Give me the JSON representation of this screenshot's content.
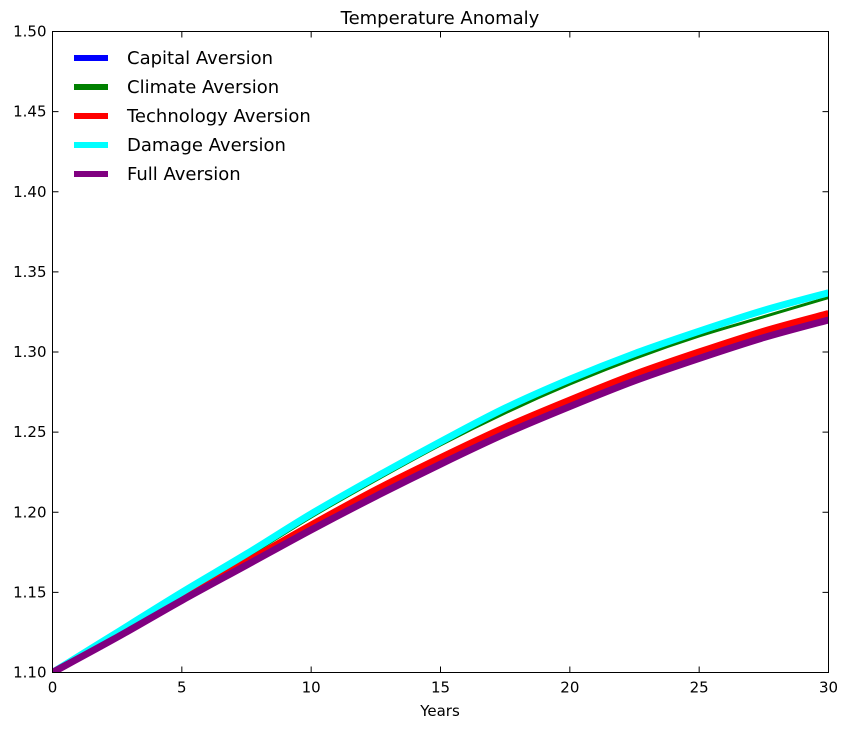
{
  "chart_data": {
    "type": "line",
    "title": "Temperature Anomaly",
    "xlabel": "Years",
    "ylabel": "",
    "xlim": [
      0,
      30
    ],
    "ylim": [
      1.1,
      1.5
    ],
    "grid": false,
    "legend_position": "top-left",
    "x_ticks": [
      {
        "value": 0,
        "label": "0"
      },
      {
        "value": 5,
        "label": "5"
      },
      {
        "value": 10,
        "label": "10"
      },
      {
        "value": 15,
        "label": "15"
      },
      {
        "value": 20,
        "label": "20"
      },
      {
        "value": 25,
        "label": "25"
      },
      {
        "value": 30,
        "label": "30"
      }
    ],
    "y_ticks": [
      {
        "value": 1.1,
        "label": "1.10"
      },
      {
        "value": 1.15,
        "label": "1.15"
      },
      {
        "value": 1.2,
        "label": "1.20"
      },
      {
        "value": 1.25,
        "label": "1.25"
      },
      {
        "value": 1.3,
        "label": "1.30"
      },
      {
        "value": 1.35,
        "label": "1.35"
      },
      {
        "value": 1.4,
        "label": "1.40"
      },
      {
        "value": 1.45,
        "label": "1.45"
      },
      {
        "value": 1.5,
        "label": "1.50"
      }
    ],
    "x": [
      0,
      2.5,
      5,
      7.5,
      10,
      12.5,
      15,
      17.5,
      20,
      22.5,
      25,
      27.5,
      30
    ],
    "series": [
      {
        "name": "Capital Aversion",
        "color": "#0000ff",
        "width": 3,
        "values": [
          1.1,
          1.122,
          1.145,
          1.168,
          1.19,
          1.212,
          1.232,
          1.251,
          1.268,
          1.284,
          1.298,
          1.31,
          1.321
        ]
      },
      {
        "name": "Climate Aversion",
        "color": "#008000",
        "width": 3,
        "values": [
          1.1,
          1.124,
          1.148,
          1.172,
          1.197,
          1.22,
          1.242,
          1.262,
          1.28,
          1.296,
          1.31,
          1.322,
          1.334
        ]
      },
      {
        "name": "Technology Aversion",
        "color": "#ff0000",
        "width": 7,
        "values": [
          1.1,
          1.123,
          1.146,
          1.169,
          1.192,
          1.214,
          1.234,
          1.253,
          1.27,
          1.286,
          1.3,
          1.313,
          1.324
        ]
      },
      {
        "name": "Damage Aversion",
        "color": "#00ffff",
        "width": 7,
        "values": [
          1.1,
          1.125,
          1.15,
          1.174,
          1.199,
          1.222,
          1.244,
          1.265,
          1.283,
          1.299,
          1.313,
          1.326,
          1.337
        ]
      },
      {
        "name": "Full Aversion",
        "color": "#800080",
        "width": 7,
        "values": [
          1.1,
          1.122,
          1.145,
          1.167,
          1.189,
          1.21,
          1.23,
          1.249,
          1.266,
          1.282,
          1.296,
          1.309,
          1.32
        ]
      }
    ]
  }
}
